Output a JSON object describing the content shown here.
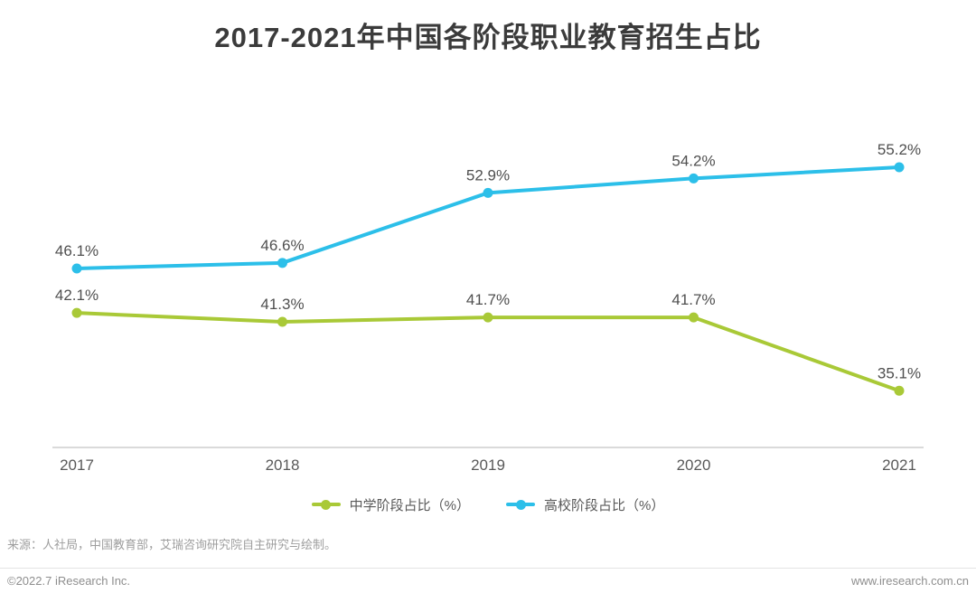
{
  "title": "2017-2021年中国各阶段职业教育招生占比",
  "chart_data": {
    "type": "line",
    "categories": [
      "2017",
      "2018",
      "2019",
      "2020",
      "2021"
    ],
    "series": [
      {
        "name": "中学阶段占比（%）",
        "color": "#a9c937",
        "values": [
          42.1,
          41.3,
          41.7,
          41.7,
          35.1
        ],
        "point_labels": [
          "42.1%",
          "41.3%",
          "41.7%",
          "41.7%",
          "35.1%"
        ]
      },
      {
        "name": "高校阶段占比（%）",
        "color": "#2cbfe9",
        "values": [
          46.1,
          46.6,
          52.9,
          54.2,
          55.2
        ],
        "point_labels": [
          "46.1%",
          "46.6%",
          "52.9%",
          "54.2%",
          "55.2%"
        ]
      }
    ],
    "ylim": [
      30,
      60
    ],
    "grid": false,
    "data_labels": true,
    "legend_position": "bottom",
    "axis_line_color": "#dadada"
  },
  "source_note": "来源：人社局，中国教育部，艾瑞咨询研究院自主研究与绘制。",
  "footer": {
    "copyright": "©2022.7 iResearch Inc.",
    "website": "www.iresearch.com.cn"
  }
}
